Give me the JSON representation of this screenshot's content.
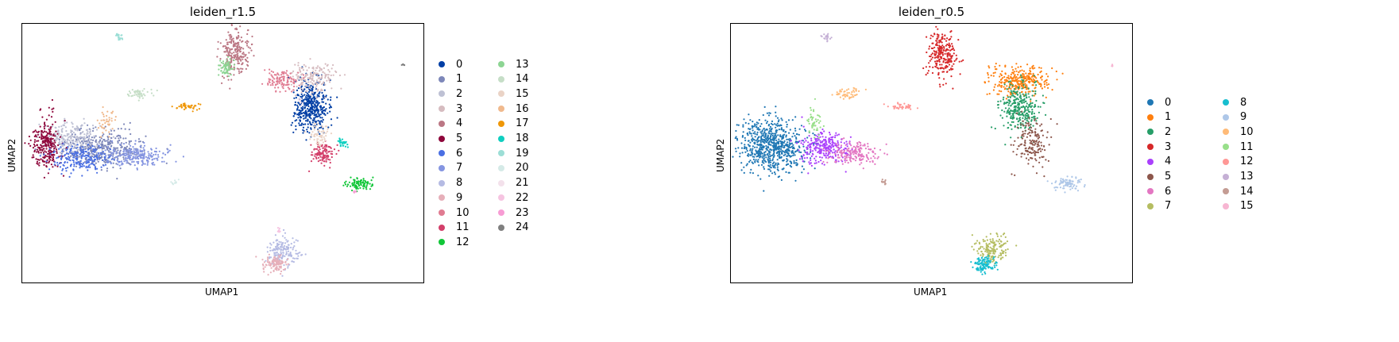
{
  "chart_data": [
    {
      "type": "scatter",
      "title": "leiden_r1.5",
      "xlabel": "UMAP1",
      "ylabel": "UMAP2",
      "legend_placement": "right",
      "legend": [
        {
          "label": "0",
          "color": "#023fa5"
        },
        {
          "label": "1",
          "color": "#7d87b9"
        },
        {
          "label": "2",
          "color": "#bec1d4"
        },
        {
          "label": "3",
          "color": "#d6bcc0"
        },
        {
          "label": "4",
          "color": "#bb7784"
        },
        {
          "label": "5",
          "color": "#8e063b"
        },
        {
          "label": "6",
          "color": "#4a6fe3"
        },
        {
          "label": "7",
          "color": "#8595e1"
        },
        {
          "label": "8",
          "color": "#b5bbe3"
        },
        {
          "label": "9",
          "color": "#e6afb9"
        },
        {
          "label": "10",
          "color": "#e07b91"
        },
        {
          "label": "11",
          "color": "#d33f6a"
        },
        {
          "label": "12",
          "color": "#11c638"
        },
        {
          "label": "13",
          "color": "#8dd593"
        },
        {
          "label": "14",
          "color": "#c6dec7"
        },
        {
          "label": "15",
          "color": "#ead3c6"
        },
        {
          "label": "16",
          "color": "#f0b98d"
        },
        {
          "label": "17",
          "color": "#ef9708"
        },
        {
          "label": "18",
          "color": "#0fcfc0"
        },
        {
          "label": "19",
          "color": "#9cded6"
        },
        {
          "label": "20",
          "color": "#d5eae7"
        },
        {
          "label": "21",
          "color": "#f3e1eb"
        },
        {
          "label": "22",
          "color": "#f6c4e1"
        },
        {
          "label": "23",
          "color": "#f79cd4"
        },
        {
          "label": "24",
          "color": "#7f7f7f"
        }
      ],
      "clusters": [
        {
          "label": "0",
          "cx": 0.72,
          "cy": 0.32,
          "sx": 0.022,
          "sy": 0.05,
          "n": 420
        },
        {
          "label": "1",
          "cx": 0.19,
          "cy": 0.48,
          "sx": 0.05,
          "sy": 0.035,
          "n": 380
        },
        {
          "label": "2",
          "cx": 0.12,
          "cy": 0.44,
          "sx": 0.035,
          "sy": 0.03,
          "n": 220
        },
        {
          "label": "3",
          "cx": 0.72,
          "cy": 0.21,
          "sx": 0.03,
          "sy": 0.03,
          "n": 180
        },
        {
          "label": "4",
          "cx": 0.53,
          "cy": 0.11,
          "sx": 0.018,
          "sy": 0.05,
          "n": 230
        },
        {
          "label": "5",
          "cx": 0.06,
          "cy": 0.47,
          "sx": 0.018,
          "sy": 0.05,
          "n": 260
        },
        {
          "label": "6",
          "cx": 0.15,
          "cy": 0.52,
          "sx": 0.04,
          "sy": 0.025,
          "n": 220
        },
        {
          "label": "7",
          "cx": 0.29,
          "cy": 0.51,
          "sx": 0.04,
          "sy": 0.02,
          "n": 220
        },
        {
          "label": "8",
          "cx": 0.65,
          "cy": 0.88,
          "sx": 0.02,
          "sy": 0.03,
          "n": 160
        },
        {
          "label": "9",
          "cx": 0.63,
          "cy": 0.93,
          "sx": 0.014,
          "sy": 0.015,
          "n": 110
        },
        {
          "label": "10",
          "cx": 0.65,
          "cy": 0.22,
          "sx": 0.02,
          "sy": 0.02,
          "n": 120
        },
        {
          "label": "11",
          "cx": 0.75,
          "cy": 0.5,
          "sx": 0.015,
          "sy": 0.02,
          "n": 110
        },
        {
          "label": "12",
          "cx": 0.84,
          "cy": 0.62,
          "sx": 0.018,
          "sy": 0.012,
          "n": 90
        },
        {
          "label": "13",
          "cx": 0.51,
          "cy": 0.17,
          "sx": 0.01,
          "sy": 0.02,
          "n": 70
        },
        {
          "label": "14",
          "cx": 0.29,
          "cy": 0.27,
          "sx": 0.015,
          "sy": 0.01,
          "n": 50
        },
        {
          "label": "15",
          "cx": 0.74,
          "cy": 0.43,
          "sx": 0.012,
          "sy": 0.025,
          "n": 60
        },
        {
          "label": "16",
          "cx": 0.21,
          "cy": 0.38,
          "sx": 0.01,
          "sy": 0.025,
          "n": 40
        },
        {
          "label": "17",
          "cx": 0.41,
          "cy": 0.32,
          "sx": 0.018,
          "sy": 0.006,
          "n": 40
        },
        {
          "label": "18",
          "cx": 0.8,
          "cy": 0.46,
          "sx": 0.005,
          "sy": 0.01,
          "n": 25
        },
        {
          "label": "19",
          "cx": 0.24,
          "cy": 0.05,
          "sx": 0.006,
          "sy": 0.01,
          "n": 20
        },
        {
          "label": "20",
          "cx": 0.38,
          "cy": 0.61,
          "sx": 0.004,
          "sy": 0.006,
          "n": 10
        },
        {
          "label": "21",
          "cx": 0.69,
          "cy": 0.3,
          "sx": 0.004,
          "sy": 0.006,
          "n": 10
        },
        {
          "label": "22",
          "cx": 0.64,
          "cy": 0.8,
          "sx": 0.003,
          "sy": 0.006,
          "n": 8
        },
        {
          "label": "23",
          "cx": 0.83,
          "cy": 0.65,
          "sx": 0.003,
          "sy": 0.004,
          "n": 6
        },
        {
          "label": "24",
          "cx": 0.95,
          "cy": 0.16,
          "sx": 0.002,
          "sy": 0.003,
          "n": 5
        }
      ]
    },
    {
      "type": "scatter",
      "title": "leiden_r0.5",
      "xlabel": "UMAP1",
      "ylabel": "UMAP2",
      "legend_placement": "right",
      "legend": [
        {
          "label": "0",
          "color": "#1f77b4"
        },
        {
          "label": "1",
          "color": "#ff7f0e"
        },
        {
          "label": "2",
          "color": "#279e68"
        },
        {
          "label": "3",
          "color": "#d62728"
        },
        {
          "label": "4",
          "color": "#aa40fc"
        },
        {
          "label": "5",
          "color": "#8c564b"
        },
        {
          "label": "6",
          "color": "#e377c2"
        },
        {
          "label": "7",
          "color": "#b5bd61"
        },
        {
          "label": "8",
          "color": "#17becf"
        },
        {
          "label": "9",
          "color": "#aec7e8"
        },
        {
          "label": "10",
          "color": "#ffbb78"
        },
        {
          "label": "11",
          "color": "#98df8a"
        },
        {
          "label": "12",
          "color": "#ff9896"
        },
        {
          "label": "13",
          "color": "#c5b0d5"
        },
        {
          "label": "14",
          "color": "#c49c94"
        },
        {
          "label": "15",
          "color": "#f7b6d2"
        }
      ],
      "clusters": [
        {
          "label": "0",
          "cx": 0.1,
          "cy": 0.47,
          "sx": 0.04,
          "sy": 0.05,
          "n": 700
        },
        {
          "label": "1",
          "cx": 0.72,
          "cy": 0.22,
          "sx": 0.04,
          "sy": 0.03,
          "n": 300
        },
        {
          "label": "2",
          "cx": 0.72,
          "cy": 0.32,
          "sx": 0.025,
          "sy": 0.045,
          "n": 300
        },
        {
          "label": "3",
          "cx": 0.53,
          "cy": 0.12,
          "sx": 0.018,
          "sy": 0.05,
          "n": 250
        },
        {
          "label": "4",
          "cx": 0.23,
          "cy": 0.48,
          "sx": 0.03,
          "sy": 0.03,
          "n": 260
        },
        {
          "label": "5",
          "cx": 0.75,
          "cy": 0.46,
          "sx": 0.018,
          "sy": 0.05,
          "n": 170
        },
        {
          "label": "6",
          "cx": 0.31,
          "cy": 0.5,
          "sx": 0.03,
          "sy": 0.02,
          "n": 180
        },
        {
          "label": "7",
          "cx": 0.65,
          "cy": 0.87,
          "sx": 0.02,
          "sy": 0.025,
          "n": 150
        },
        {
          "label": "8",
          "cx": 0.63,
          "cy": 0.93,
          "sx": 0.014,
          "sy": 0.015,
          "n": 110
        },
        {
          "label": "9",
          "cx": 0.84,
          "cy": 0.62,
          "sx": 0.018,
          "sy": 0.012,
          "n": 80
        },
        {
          "label": "10",
          "cx": 0.29,
          "cy": 0.27,
          "sx": 0.015,
          "sy": 0.01,
          "n": 50
        },
        {
          "label": "11",
          "cx": 0.21,
          "cy": 0.38,
          "sx": 0.01,
          "sy": 0.025,
          "n": 45
        },
        {
          "label": "12",
          "cx": 0.43,
          "cy": 0.32,
          "sx": 0.018,
          "sy": 0.006,
          "n": 40
        },
        {
          "label": "13",
          "cx": 0.24,
          "cy": 0.05,
          "sx": 0.006,
          "sy": 0.01,
          "n": 20
        },
        {
          "label": "14",
          "cx": 0.38,
          "cy": 0.61,
          "sx": 0.004,
          "sy": 0.006,
          "n": 10
        },
        {
          "label": "15",
          "cx": 0.95,
          "cy": 0.16,
          "sx": 0.002,
          "sy": 0.003,
          "n": 5
        }
      ]
    }
  ]
}
